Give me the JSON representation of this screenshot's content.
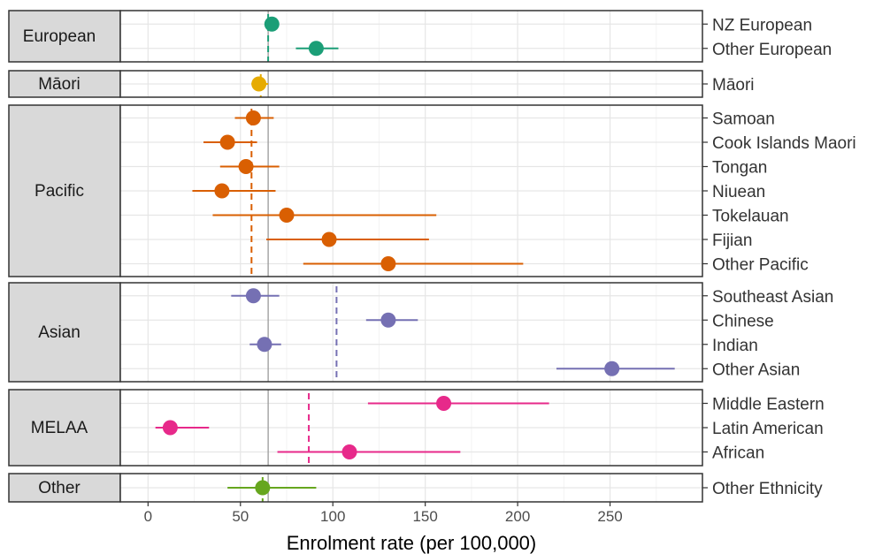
{
  "chart_data": {
    "type": "scatter",
    "subtype": "dot-with-error-bars, faceted",
    "xlabel": "Enrolment rate (per 100,000)",
    "xlim": [
      -15,
      300
    ],
    "xticks": [
      0,
      50,
      100,
      150,
      200,
      250
    ],
    "grid": true,
    "overall_reference_line": 65,
    "colors": {
      "European": "#1b9e77",
      "Māori": "#e6ab02",
      "Pacific": "#d95f02",
      "Asian": "#7570b3",
      "MELAA": "#e7298a",
      "Other": "#66a61e"
    },
    "groups": [
      {
        "name": "European",
        "group_mean": 65,
        "items": [
          {
            "label": "NZ European",
            "value": 67,
            "lower": 65,
            "upper": 69
          },
          {
            "label": "Other European",
            "value": 91,
            "lower": 80,
            "upper": 103
          }
        ]
      },
      {
        "name": "Māori",
        "group_mean": 61,
        "items": [
          {
            "label": "Māori",
            "value": 60,
            "lower": 56,
            "upper": 65
          }
        ]
      },
      {
        "name": "Pacific",
        "group_mean": 56,
        "items": [
          {
            "label": "Samoan",
            "value": 57,
            "lower": 47,
            "upper": 68
          },
          {
            "label": "Cook Islands Maori",
            "value": 43,
            "lower": 30,
            "upper": 59
          },
          {
            "label": "Tongan",
            "value": 53,
            "lower": 39,
            "upper": 71
          },
          {
            "label": "Niuean",
            "value": 40,
            "lower": 24,
            "upper": 69
          },
          {
            "label": "Tokelauan",
            "value": 75,
            "lower": 35,
            "upper": 156
          },
          {
            "label": "Fijian",
            "value": 98,
            "lower": 64,
            "upper": 152
          },
          {
            "label": "Other Pacific",
            "value": 130,
            "lower": 84,
            "upper": 203
          }
        ]
      },
      {
        "name": "Asian",
        "group_mean": 102,
        "items": [
          {
            "label": "Southeast Asian",
            "value": 57,
            "lower": 45,
            "upper": 71
          },
          {
            "label": "Chinese",
            "value": 130,
            "lower": 118,
            "upper": 146
          },
          {
            "label": "Indian",
            "value": 63,
            "lower": 55,
            "upper": 72
          },
          {
            "label": "Other Asian",
            "value": 251,
            "lower": 221,
            "upper": 285
          }
        ]
      },
      {
        "name": "MELAA",
        "group_mean": 87,
        "items": [
          {
            "label": "Middle Eastern",
            "value": 160,
            "lower": 119,
            "upper": 217
          },
          {
            "label": "Latin American",
            "value": 12,
            "lower": 4,
            "upper": 33
          },
          {
            "label": "African",
            "value": 109,
            "lower": 70,
            "upper": 169
          }
        ]
      },
      {
        "name": "Other",
        "group_mean": 62,
        "items": [
          {
            "label": "Other Ethnicity",
            "value": 62,
            "lower": 43,
            "upper": 91
          }
        ]
      }
    ]
  }
}
